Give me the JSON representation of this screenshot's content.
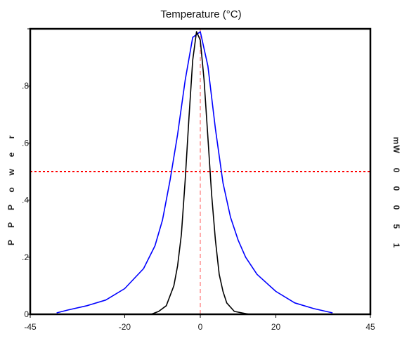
{
  "chart_data": {
    "type": "line",
    "title": "Temperature (°C)",
    "xlim": [
      -45,
      45
    ],
    "ylim": [
      0,
      1
    ],
    "x_ticks": [
      -45,
      -20,
      0,
      20,
      45
    ],
    "x_tick_labels": [
      "-45",
      "-20",
      "0",
      "20",
      "45"
    ],
    "y_ticks": [
      0,
      0.2,
      0.4,
      0.6,
      0.8,
      1.0
    ],
    "y_tick_labels": [
      "0",
      ".2",
      ".4",
      ".6",
      ".8",
      ""
    ],
    "left_label_chars": [
      "P",
      "P",
      "P",
      "o",
      "w",
      "e",
      "r"
    ],
    "right_label_chars": [
      "m",
      "W",
      "0",
      "0",
      "0",
      "5",
      "1"
    ],
    "reference_lines": {
      "horizontal_y": 0.5,
      "vertical_x": 0,
      "horizontal_color": "#ff0000",
      "vertical_color": "#ff9090"
    },
    "series": [
      {
        "color": "#0000ff",
        "x": [
          -38,
          -35,
          -30,
          -25,
          -20,
          -15,
          -12,
          -10,
          -8,
          -6,
          -4,
          -2,
          0,
          2,
          4,
          6,
          8,
          10,
          12,
          15,
          20,
          25,
          30,
          35
        ],
        "y": [
          0.005,
          0.015,
          0.03,
          0.05,
          0.09,
          0.16,
          0.24,
          0.33,
          0.47,
          0.63,
          0.82,
          0.97,
          0.99,
          0.87,
          0.65,
          0.46,
          0.34,
          0.26,
          0.2,
          0.14,
          0.08,
          0.04,
          0.02,
          0.005
        ]
      },
      {
        "color": "#000000",
        "x": [
          -13,
          -11,
          -9,
          -7,
          -6,
          -5,
          -4,
          -3,
          -2,
          -1,
          0,
          1,
          2,
          3,
          4,
          5,
          6,
          7,
          9,
          11,
          13
        ],
        "y": [
          0.0,
          0.01,
          0.03,
          0.1,
          0.17,
          0.28,
          0.47,
          0.69,
          0.89,
          0.99,
          0.96,
          0.82,
          0.62,
          0.42,
          0.26,
          0.14,
          0.08,
          0.04,
          0.01,
          0.005,
          0.0
        ]
      }
    ]
  }
}
